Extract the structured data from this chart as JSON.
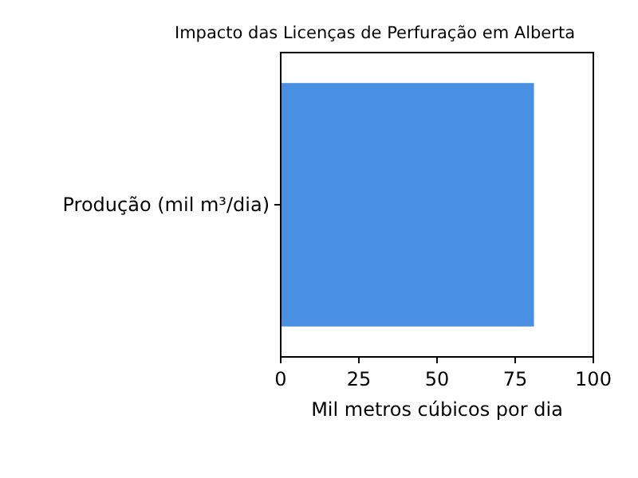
{
  "chart_data": {
    "type": "bar",
    "orientation": "horizontal",
    "title": "Impacto das Licenças de Perfuração em Alberta",
    "xlabel": "Mil metros cúbicos por dia",
    "categories": [
      "Produção (mil m³/dia)"
    ],
    "values": [
      81
    ],
    "color": "#4a90e2",
    "xlim": [
      0,
      100
    ],
    "xticks": [
      0,
      25,
      50,
      75,
      100
    ]
  }
}
